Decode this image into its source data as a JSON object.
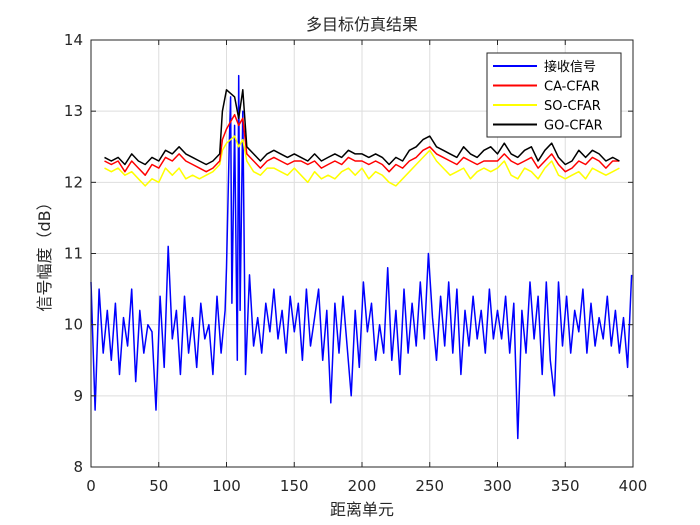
{
  "chart_data": {
    "type": "line",
    "title": "多目标仿真结果",
    "xlabel": "距离单元",
    "ylabel": "信号幅度（dB）",
    "xlim": [
      0,
      400
    ],
    "ylim": [
      8,
      14
    ],
    "xticks": [
      0,
      50,
      100,
      150,
      200,
      250,
      300,
      350,
      400
    ],
    "yticks": [
      8,
      9,
      10,
      11,
      12,
      13,
      14
    ],
    "grid": true,
    "legend_position": "top-right",
    "series": [
      {
        "name": "接收信号",
        "color": "#0000ff",
        "x": [
          0,
          3,
          6,
          9,
          12,
          15,
          18,
          21,
          24,
          27,
          30,
          33,
          36,
          39,
          42,
          45,
          48,
          51,
          54,
          57,
          60,
          63,
          66,
          69,
          72,
          75,
          78,
          81,
          84,
          87,
          90,
          93,
          96,
          99,
          100,
          102,
          103,
          104,
          106,
          108,
          109,
          110,
          112,
          114,
          117,
          120,
          123,
          126,
          129,
          132,
          135,
          138,
          141,
          144,
          147,
          150,
          153,
          156,
          159,
          162,
          165,
          168,
          171,
          174,
          177,
          180,
          183,
          186,
          189,
          192,
          195,
          198,
          201,
          204,
          207,
          210,
          213,
          216,
          219,
          222,
          225,
          228,
          231,
          234,
          237,
          240,
          243,
          246,
          249,
          252,
          255,
          258,
          261,
          264,
          267,
          270,
          273,
          276,
          279,
          282,
          285,
          288,
          291,
          294,
          297,
          300,
          303,
          306,
          309,
          312,
          315,
          318,
          321,
          324,
          327,
          330,
          333,
          336,
          339,
          342,
          345,
          348,
          351,
          354,
          357,
          360,
          363,
          366,
          369,
          372,
          375,
          378,
          381,
          384,
          387,
          390,
          393,
          396,
          399
        ],
        "values": [
          10.6,
          8.8,
          10.5,
          9.6,
          10.2,
          9.5,
          10.3,
          9.3,
          10.1,
          9.7,
          10.5,
          9.2,
          10.2,
          9.6,
          10.0,
          9.9,
          8.8,
          10.4,
          9.4,
          11.1,
          9.8,
          10.2,
          9.3,
          10.4,
          9.6,
          10.1,
          9.4,
          10.3,
          9.8,
          10.0,
          9.3,
          10.4,
          9.6,
          10.2,
          10.8,
          12.5,
          13.2,
          10.3,
          12.8,
          9.5,
          13.5,
          10.2,
          13.0,
          9.3,
          10.7,
          9.7,
          10.1,
          9.6,
          10.3,
          9.9,
          10.5,
          9.8,
          10.2,
          9.6,
          10.4,
          9.9,
          10.3,
          9.5,
          10.5,
          9.7,
          10.1,
          10.5,
          9.5,
          10.2,
          8.9,
          10.3,
          9.6,
          10.4,
          9.7,
          9.0,
          10.2,
          9.4,
          10.6,
          9.9,
          10.3,
          9.5,
          10.0,
          9.6,
          10.8,
          9.5,
          10.2,
          9.3,
          10.5,
          9.6,
          10.3,
          9.7,
          10.6,
          9.8,
          11.0,
          10.1,
          9.5,
          10.4,
          9.7,
          10.6,
          9.6,
          10.5,
          9.3,
          10.2,
          9.7,
          10.4,
          9.8,
          10.2,
          9.6,
          10.5,
          9.8,
          10.2,
          9.8,
          10.4,
          9.6,
          10.3,
          8.4,
          10.2,
          9.6,
          10.6,
          9.8,
          10.4,
          9.3,
          10.6,
          9.5,
          9.0,
          10.6,
          9.7,
          10.4,
          9.6,
          10.2,
          9.9,
          10.5,
          9.6,
          10.3,
          9.7,
          10.1,
          9.8,
          10.4,
          9.7,
          10.2,
          9.6,
          10.1,
          9.4,
          10.7
        ]
      },
      {
        "name": "CA-CFAR",
        "color": "#ff0000",
        "x": [
          10,
          15,
          20,
          25,
          30,
          35,
          40,
          45,
          50,
          55,
          60,
          65,
          70,
          75,
          80,
          85,
          90,
          95,
          97,
          100,
          103,
          106,
          109,
          112,
          115,
          120,
          125,
          130,
          135,
          140,
          145,
          150,
          155,
          160,
          165,
          170,
          175,
          180,
          185,
          190,
          195,
          200,
          205,
          210,
          215,
          220,
          225,
          230,
          235,
          240,
          245,
          250,
          255,
          260,
          265,
          270,
          275,
          280,
          285,
          290,
          295,
          300,
          305,
          310,
          315,
          320,
          325,
          330,
          335,
          340,
          345,
          350,
          355,
          360,
          365,
          370,
          375,
          380,
          385,
          390
        ],
        "values": [
          12.3,
          12.25,
          12.3,
          12.15,
          12.3,
          12.2,
          12.1,
          12.25,
          12.2,
          12.35,
          12.3,
          12.4,
          12.3,
          12.25,
          12.2,
          12.15,
          12.2,
          12.3,
          12.6,
          12.75,
          12.85,
          12.95,
          12.8,
          12.9,
          12.4,
          12.3,
          12.2,
          12.3,
          12.35,
          12.3,
          12.25,
          12.3,
          12.3,
          12.25,
          12.3,
          12.2,
          12.25,
          12.3,
          12.25,
          12.35,
          12.3,
          12.3,
          12.25,
          12.3,
          12.25,
          12.15,
          12.25,
          12.2,
          12.3,
          12.35,
          12.45,
          12.5,
          12.4,
          12.35,
          12.3,
          12.25,
          12.35,
          12.3,
          12.25,
          12.3,
          12.3,
          12.3,
          12.4,
          12.3,
          12.25,
          12.3,
          12.35,
          12.2,
          12.3,
          12.4,
          12.25,
          12.15,
          12.2,
          12.3,
          12.25,
          12.35,
          12.3,
          12.2,
          12.3,
          12.3
        ]
      },
      {
        "name": "SO-CFAR",
        "color": "#ffff00",
        "x": [
          10,
          15,
          20,
          25,
          30,
          35,
          40,
          45,
          50,
          55,
          60,
          65,
          70,
          75,
          80,
          85,
          90,
          95,
          97,
          100,
          103,
          106,
          109,
          112,
          115,
          120,
          125,
          130,
          135,
          140,
          145,
          150,
          155,
          160,
          165,
          170,
          175,
          180,
          185,
          190,
          195,
          200,
          205,
          210,
          215,
          220,
          225,
          230,
          235,
          240,
          245,
          250,
          255,
          260,
          265,
          270,
          275,
          280,
          285,
          290,
          295,
          300,
          305,
          310,
          315,
          320,
          325,
          330,
          335,
          340,
          345,
          350,
          355,
          360,
          365,
          370,
          375,
          380,
          385,
          390
        ],
        "values": [
          12.2,
          12.15,
          12.2,
          12.1,
          12.15,
          12.05,
          11.95,
          12.05,
          12.0,
          12.2,
          12.1,
          12.2,
          12.05,
          12.1,
          12.05,
          12.1,
          12.15,
          12.25,
          12.45,
          12.55,
          12.6,
          12.65,
          12.5,
          12.6,
          12.3,
          12.15,
          12.1,
          12.2,
          12.2,
          12.15,
          12.1,
          12.2,
          12.1,
          12.0,
          12.15,
          12.05,
          12.1,
          12.05,
          12.15,
          12.2,
          12.1,
          12.2,
          12.05,
          12.15,
          12.1,
          12.0,
          11.95,
          12.05,
          12.15,
          12.25,
          12.35,
          12.45,
          12.3,
          12.2,
          12.1,
          12.15,
          12.2,
          12.05,
          12.15,
          12.2,
          12.15,
          12.2,
          12.3,
          12.1,
          12.05,
          12.2,
          12.15,
          12.05,
          12.2,
          12.3,
          12.1,
          12.05,
          12.1,
          12.15,
          12.05,
          12.2,
          12.15,
          12.1,
          12.15,
          12.2
        ]
      },
      {
        "name": "GO-CFAR",
        "color": "#000000",
        "x": [
          10,
          15,
          20,
          25,
          30,
          35,
          40,
          45,
          50,
          55,
          60,
          65,
          70,
          75,
          80,
          85,
          90,
          95,
          97,
          100,
          103,
          106,
          109,
          112,
          115,
          120,
          125,
          130,
          135,
          140,
          145,
          150,
          155,
          160,
          165,
          170,
          175,
          180,
          185,
          190,
          195,
          200,
          205,
          210,
          215,
          220,
          225,
          230,
          235,
          240,
          245,
          250,
          255,
          260,
          265,
          270,
          275,
          280,
          285,
          290,
          295,
          300,
          305,
          310,
          315,
          320,
          325,
          330,
          335,
          340,
          345,
          350,
          355,
          360,
          365,
          370,
          375,
          380,
          385,
          390
        ],
        "values": [
          12.35,
          12.3,
          12.35,
          12.25,
          12.4,
          12.3,
          12.25,
          12.35,
          12.3,
          12.45,
          12.4,
          12.5,
          12.4,
          12.35,
          12.3,
          12.25,
          12.3,
          12.4,
          13.0,
          13.3,
          13.25,
          13.2,
          12.9,
          13.3,
          12.5,
          12.4,
          12.3,
          12.4,
          12.45,
          12.4,
          12.35,
          12.4,
          12.35,
          12.3,
          12.4,
          12.3,
          12.35,
          12.4,
          12.35,
          12.45,
          12.4,
          12.4,
          12.35,
          12.4,
          12.35,
          12.25,
          12.35,
          12.3,
          12.45,
          12.5,
          12.6,
          12.65,
          12.5,
          12.45,
          12.4,
          12.35,
          12.5,
          12.4,
          12.35,
          12.45,
          12.5,
          12.4,
          12.55,
          12.4,
          12.35,
          12.45,
          12.5,
          12.3,
          12.45,
          12.55,
          12.35,
          12.25,
          12.3,
          12.45,
          12.35,
          12.45,
          12.4,
          12.3,
          12.35,
          12.3
        ]
      }
    ]
  }
}
